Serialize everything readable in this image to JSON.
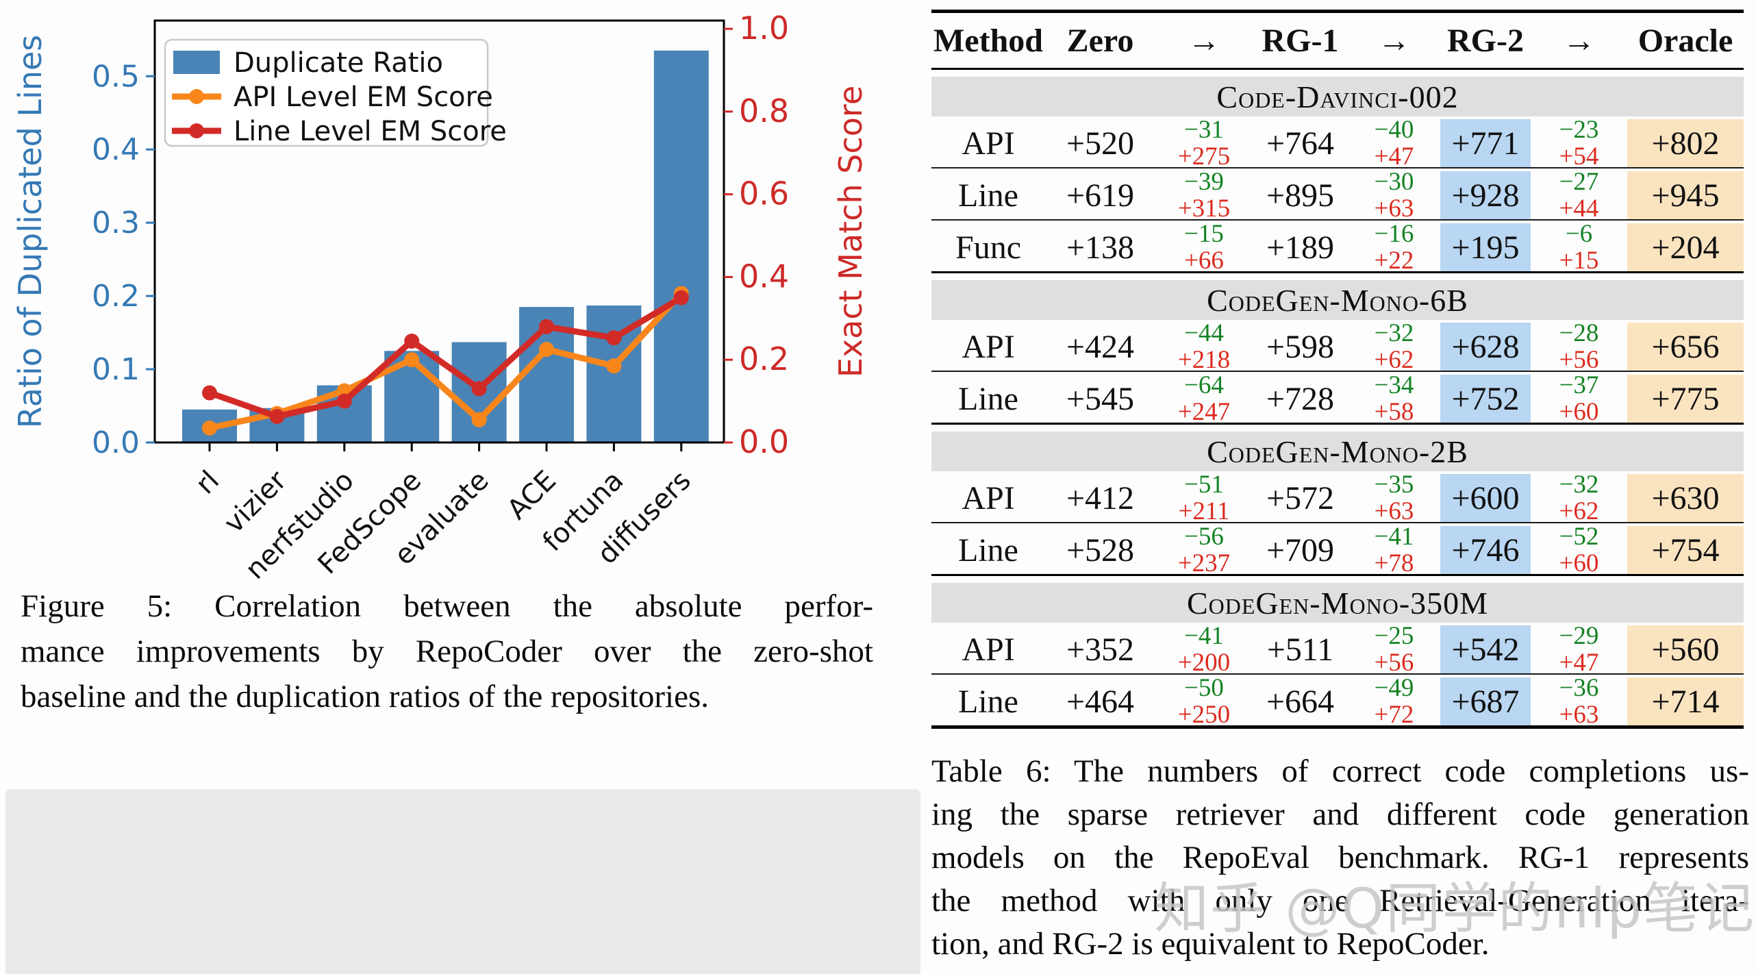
{
  "colors": {
    "bar_blue": "#4a84b6",
    "left_axis_blue": "#3579b5",
    "right_axis_red": "#cd2a28",
    "line_orange": "#f8861b",
    "line_red": "#d22b27",
    "legend_border": "#c9c9c9",
    "table_green": "#148224",
    "table_red": "#dc2a1f",
    "hl_blue": "#b9d6f2",
    "hl_orange": "#fae4c0",
    "band_gray": "#dfdfdf"
  },
  "chart_data": {
    "type": "bar+line",
    "categories": [
      "rl",
      "vizier",
      "nerfstudio",
      "FedScope",
      "evaluate",
      "ACE",
      "fortuna",
      "diffusers"
    ],
    "bar_series": {
      "name": "Duplicate Ratio",
      "axis": "left",
      "values": [
        0.045,
        0.047,
        0.078,
        0.125,
        0.137,
        0.185,
        0.187,
        0.535
      ]
    },
    "line_series": [
      {
        "name": "API Level EM Score",
        "axis": "right",
        "values": [
          0.035,
          0.07,
          0.125,
          0.2,
          0.055,
          0.225,
          0.185,
          0.36
        ]
      },
      {
        "name": "Line Level EM Score",
        "axis": "right",
        "values": [
          0.12,
          0.063,
          0.1,
          0.245,
          0.13,
          0.28,
          0.253,
          0.35
        ]
      }
    ],
    "ylabel_left": "Ratio of Duplicated Lines",
    "ylabel_right": "Exact Match Score",
    "yticks_left": [
      "0.0",
      "0.1",
      "0.2",
      "0.3",
      "0.4",
      "0.5"
    ],
    "yticks_right": [
      "0.0",
      "0.2",
      "0.4",
      "0.6",
      "0.8",
      "1.0"
    ],
    "ylim_left": [
      0,
      0.576
    ],
    "ylim_right": [
      0,
      1.02
    ],
    "xtick_rotation": -45,
    "grid": false,
    "legend_position": "upper left",
    "legend_labels": [
      "Duplicate Ratio",
      "API Level EM Score",
      "Line Level EM Score"
    ]
  },
  "figure": {
    "caption_lines": [
      "Figure 5:  Correlation between the absolute perfor-",
      "mance improvements by RepoCoder over the zero-shot",
      "baseline and the duplication ratios of the repositories."
    ]
  },
  "table": {
    "headers": [
      "Method",
      "Zero",
      "→",
      "RG-1",
      "→",
      "RG-2",
      "→",
      "Oracle"
    ],
    "sections": [
      {
        "title": "Code-Davinci-002",
        "rows": [
          {
            "method": "API",
            "zero": "+520",
            "rg1": "+764",
            "rg2": "+771",
            "oracle": "+802",
            "deltas": [
              [
                "−31",
                "+275"
              ],
              [
                "−40",
                "+47"
              ],
              [
                "−23",
                "+54"
              ]
            ]
          },
          {
            "method": "Line",
            "zero": "+619",
            "rg1": "+895",
            "rg2": "+928",
            "oracle": "+945",
            "deltas": [
              [
                "−39",
                "+315"
              ],
              [
                "−30",
                "+63"
              ],
              [
                "−27",
                "+44"
              ]
            ]
          },
          {
            "method": "Func",
            "zero": "+138",
            "rg1": "+189",
            "rg2": "+195",
            "oracle": "+204",
            "deltas": [
              [
                "−15",
                "+66"
              ],
              [
                "−16",
                "+22"
              ],
              [
                "−6",
                "+15"
              ]
            ]
          }
        ]
      },
      {
        "title": "CodeGen-Mono-6B",
        "rows": [
          {
            "method": "API",
            "zero": "+424",
            "rg1": "+598",
            "rg2": "+628",
            "oracle": "+656",
            "deltas": [
              [
                "−44",
                "+218"
              ],
              [
                "−32",
                "+62"
              ],
              [
                "−28",
                "+56"
              ]
            ]
          },
          {
            "method": "Line",
            "zero": "+545",
            "rg1": "+728",
            "rg2": "+752",
            "oracle": "+775",
            "deltas": [
              [
                "−64",
                "+247"
              ],
              [
                "−34",
                "+58"
              ],
              [
                "−37",
                "+60"
              ]
            ]
          }
        ]
      },
      {
        "title": "CodeGen-Mono-2B",
        "rows": [
          {
            "method": "API",
            "zero": "+412",
            "rg1": "+572",
            "rg2": "+600",
            "oracle": "+630",
            "deltas": [
              [
                "−51",
                "+211"
              ],
              [
                "−35",
                "+63"
              ],
              [
                "−32",
                "+62"
              ]
            ]
          },
          {
            "method": "Line",
            "zero": "+528",
            "rg1": "+709",
            "rg2": "+746",
            "oracle": "+754",
            "deltas": [
              [
                "−56",
                "+237"
              ],
              [
                "−41",
                "+78"
              ],
              [
                "−52",
                "+60"
              ]
            ]
          }
        ]
      },
      {
        "title": "CodeGen-Mono-350M",
        "rows": [
          {
            "method": "API",
            "zero": "+352",
            "rg1": "+511",
            "rg2": "+542",
            "oracle": "+560",
            "deltas": [
              [
                "−41",
                "+200"
              ],
              [
                "−25",
                "+56"
              ],
              [
                "−29",
                "+47"
              ]
            ]
          },
          {
            "method": "Line",
            "zero": "+464",
            "rg1": "+664",
            "rg2": "+687",
            "oracle": "+714",
            "deltas": [
              [
                "−50",
                "+250"
              ],
              [
                "−49",
                "+72"
              ],
              [
                "−36",
                "+63"
              ]
            ]
          }
        ]
      }
    ],
    "caption_lines": [
      "Table 6:  The numbers of correct code completions us-",
      "ing the sparse retriever and different code generation",
      "models on the RepoEval benchmark.  RG-1 represents",
      "the method with only one Retrieval-Generation itera-",
      "tion, and RG-2 is equivalent to RepoCoder."
    ]
  },
  "watermark": {
    "text": "知乎 @Q同学的nlp笔记"
  }
}
